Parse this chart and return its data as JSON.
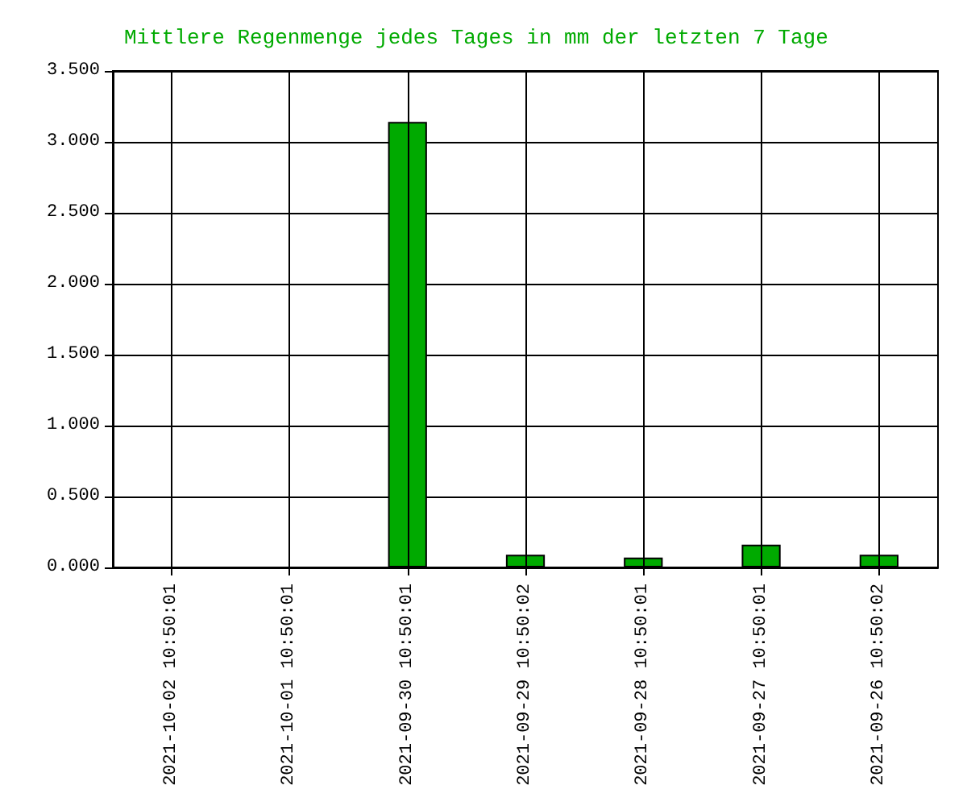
{
  "chart_data": {
    "type": "bar",
    "title": "Mittlere Regenmenge jedes Tages in mm der letzten 7 Tage",
    "categories": [
      "2021-10-02 10:50:01",
      "2021-10-01 10:50:01",
      "2021-09-30 10:50:01",
      "2021-09-29 10:50:02",
      "2021-09-28 10:50:01",
      "2021-09-27 10:50:01",
      "2021-09-26 10:50:02"
    ],
    "values": [
      0,
      0,
      3.14,
      0.09,
      0.07,
      0.16,
      0.09
    ],
    "color": "#00aa00",
    "ylim": [
      0,
      3.5
    ],
    "yticks": [
      {
        "value": 0,
        "label": "0.000"
      },
      {
        "value": 0.5,
        "label": "0.500"
      },
      {
        "value": 1,
        "label": "1.000"
      },
      {
        "value": 1.5,
        "label": "1.500"
      },
      {
        "value": 2,
        "label": "2.000"
      },
      {
        "value": 2.5,
        "label": "2.500"
      },
      {
        "value": 3,
        "label": "3.000"
      },
      {
        "value": 3.5,
        "label": "3.500"
      }
    ],
    "grid": true
  }
}
